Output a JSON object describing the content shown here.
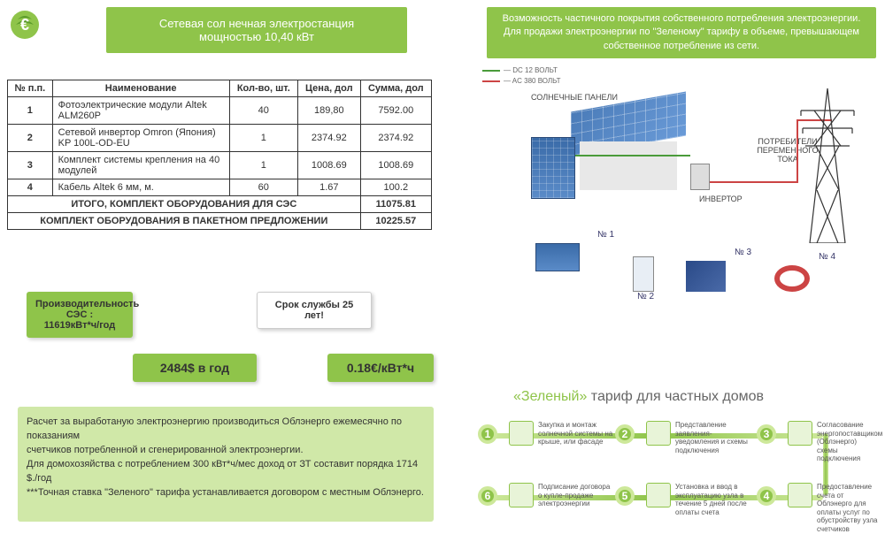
{
  "colors": {
    "primary_green": "#8fc44a",
    "light_green": "#d0e8a8",
    "node_border": "#cde89a",
    "panel_blue": "#4a7bb8",
    "text": "#333333",
    "wire_green": "#4a9b3a",
    "wire_red": "#cc4444"
  },
  "title": {
    "line1": "Сетевая сол нечная электростанция",
    "line2": "мощностью 10,40 кВт"
  },
  "top_box": "Возможность частичного покрытия собственного потребления электроэнергии.  Для продажи электроэнергии по \"Зеленому\" тарифу в объеме, превышающем собственное потребление из сети.",
  "table": {
    "headers": {
      "num": "№ п.п.",
      "name": "Наименование",
      "qty": "Кол-во, шт.",
      "price": "Цена, дол",
      "sum": "Сумма, дол"
    },
    "rows": [
      {
        "num": "1",
        "name": "Фотоэлектрические модули Altek ALM260P",
        "qty": "40",
        "price": "189,80",
        "sum": "7592.00"
      },
      {
        "num": "2",
        "name": "Сетевой инвертор Omron (Япония)  KP 100L-OD-EU",
        "qty": "1",
        "price": "2374.92",
        "sum": "2374.92"
      },
      {
        "num": "3",
        "name": "Комплект системы крепления на 40 модулей",
        "qty": "1",
        "price": "1008.69",
        "sum": "1008.69"
      },
      {
        "num": "4",
        "name": "Кабель Altek 6 мм, м.",
        "qty": "60",
        "price": "1.67",
        "sum": "100.2"
      }
    ],
    "subtotal1": {
      "label": "ИТОГО, КОМПЛЕКТ ОБОРУДОВАНИЯ ДЛЯ СЭС",
      "value": "11075.81"
    },
    "subtotal2": {
      "label": "КОМПЛЕКТ ОБОРУДОВАНИЯ В ПАКЕТНОМ ПРЕДЛОЖЕНИИ",
      "value": "10225.57"
    }
  },
  "stats": {
    "perf": {
      "l1": "Производительность СЭС :",
      "l2": "11619кВт*ч/год"
    },
    "life": "Срок службы 25 лет!",
    "annual": "2484$ в год",
    "rate": "0.18€/кВт*ч"
  },
  "bottom_text": "Расчет за выработаную электроэнергию производиться Облэнерго ежемесячно по показаниям\nсчетчиков потребленной и сгенерированной электроэнергии.\nДля домохозяйства с потреблением 300 кВт*ч/мес доход от ЗТ составит порядка 1714 $./год\n***Точная ставка \"Зеленого\" тарифа устанавливается договором с местным Облэнерго.",
  "diagram": {
    "legend_dc": "— DC 12 ВОЛЬТ",
    "legend_ac": "— AC 380 ВОЛЬТ",
    "label_panels": "СОЛНЕЧНЫЕ ПАНЕЛИ",
    "label_inverter": "ИНВЕРТОР",
    "label_consumers": "ПОТРЕБИТЕЛИ ПЕРЕМЕННОГО ТОКА",
    "items": {
      "n1": "№ 1",
      "n2": "№ 2",
      "n3": "№ 3",
      "n4": "№ 4"
    }
  },
  "tariff": {
    "title_green": "«Зеленый»",
    "title_rest": " тариф для частных домов",
    "steps": [
      {
        "n": "1",
        "text": "Закупка и монтаж солнечной системы на крыше, или фасаде"
      },
      {
        "n": "2",
        "text": "Представление заявления-уведомления и схемы подключения"
      },
      {
        "n": "3",
        "text": "Согласование энергопоставщиком (Облэнерго) схемы подключения"
      },
      {
        "n": "4",
        "text": "Предоставление счета от Облэнерго для оплаты услуг по обустройству узла счетчиков"
      },
      {
        "n": "5",
        "text": "Установка и ввод в эксплуатацию узла в течение 5 дней после оплаты счета"
      },
      {
        "n": "6",
        "text": "Подписание договора о купле-продаже электроэнергии"
      }
    ]
  }
}
